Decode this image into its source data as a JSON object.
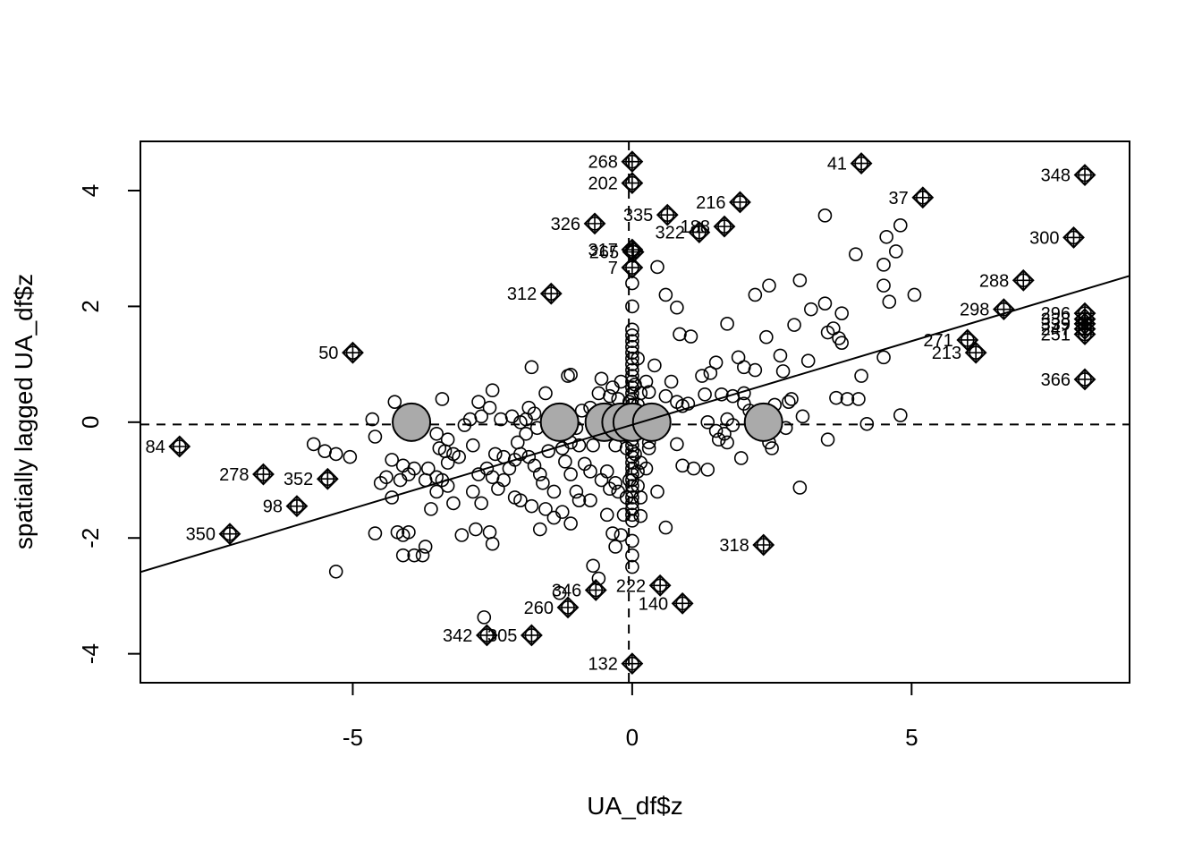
{
  "chart_data": {
    "type": "scatter",
    "title": "",
    "xlabel": "UA_df$z",
    "ylabel": "spatially lagged UA_df$z",
    "xlim": [
      -8.8,
      8.9
    ],
    "ylim": [
      -4.5,
      4.85
    ],
    "x_ticks": [
      {
        "value": -5,
        "label": "-5"
      },
      {
        "value": 0,
        "label": "0"
      },
      {
        "value": 5,
        "label": "5"
      }
    ],
    "y_ticks": [
      {
        "value": -4,
        "label": "-4"
      },
      {
        "value": -2,
        "label": "-2"
      },
      {
        "value": 0,
        "label": "0"
      },
      {
        "value": 2,
        "label": "2"
      },
      {
        "value": 4,
        "label": "4"
      }
    ],
    "reference_lines": {
      "vertical_x": -0.06,
      "horizontal_y": -0.04,
      "style": "dashed"
    },
    "regression_line": {
      "intercept": -0.045,
      "slope": 0.289
    },
    "grid": false,
    "legend": "none",
    "influential_points": [
      {
        "label": "268",
        "x": 0.0,
        "y": 4.5
      },
      {
        "label": "202",
        "x": 0.0,
        "y": 4.13
      },
      {
        "label": "41",
        "x": 4.1,
        "y": 4.47
      },
      {
        "label": "348",
        "x": 8.1,
        "y": 4.27
      },
      {
        "label": "37",
        "x": 5.2,
        "y": 3.88
      },
      {
        "label": "216",
        "x": 1.93,
        "y": 3.8
      },
      {
        "label": "335",
        "x": 0.63,
        "y": 3.58
      },
      {
        "label": "326",
        "x": -0.67,
        "y": 3.43
      },
      {
        "label": "188",
        "x": 1.65,
        "y": 3.38
      },
      {
        "label": "322",
        "x": 1.2,
        "y": 3.28
      },
      {
        "label": "300",
        "x": 7.9,
        "y": 3.19
      },
      {
        "label": "317",
        "x": 0.0,
        "y": 2.98
      },
      {
        "label": "265",
        "x": 0.02,
        "y": 2.94
      },
      {
        "label": "7",
        "x": 0.0,
        "y": 2.67
      },
      {
        "label": "288",
        "x": 7.0,
        "y": 2.45
      },
      {
        "label": "312",
        "x": -1.45,
        "y": 2.22
      },
      {
        "label": "298",
        "x": 6.65,
        "y": 1.95
      },
      {
        "label": "296",
        "x": 8.1,
        "y": 1.88
      },
      {
        "label": "338",
        "x": 8.1,
        "y": 1.78
      },
      {
        "label": "339",
        "x": 8.1,
        "y": 1.7
      },
      {
        "label": "247",
        "x": 8.1,
        "y": 1.61
      },
      {
        "label": "251",
        "x": 8.1,
        "y": 1.52
      },
      {
        "label": "271",
        "x": 6.0,
        "y": 1.42
      },
      {
        "label": "213",
        "x": 6.15,
        "y": 1.2
      },
      {
        "label": "50",
        "x": -5.0,
        "y": 1.2
      },
      {
        "label": "366",
        "x": 8.1,
        "y": 0.74
      },
      {
        "label": "84",
        "x": -8.1,
        "y": -0.42
      },
      {
        "label": "278",
        "x": -6.6,
        "y": -0.9
      },
      {
        "label": "352",
        "x": -5.45,
        "y": -0.98
      },
      {
        "label": "98",
        "x": -6.0,
        "y": -1.45
      },
      {
        "label": "350",
        "x": -7.2,
        "y": -1.93
      },
      {
        "label": "318",
        "x": 2.35,
        "y": -2.12
      },
      {
        "label": "222",
        "x": 0.5,
        "y": -2.82
      },
      {
        "label": "346",
        "x": -0.65,
        "y": -2.9
      },
      {
        "label": "140",
        "x": 0.9,
        "y": -3.13
      },
      {
        "label": "260",
        "x": -1.15,
        "y": -3.2
      },
      {
        "label": "342",
        "x": -2.6,
        "y": -3.68
      },
      {
        "label": "305",
        "x": -1.8,
        "y": -3.68
      },
      {
        "label": "132",
        "x": 0.0,
        "y": -4.17
      }
    ],
    "large_points": [
      {
        "x": -3.95,
        "y": 0.0
      },
      {
        "x": -1.3,
        "y": 0.0
      },
      {
        "x": -0.5,
        "y": 0.0
      },
      {
        "x": -0.2,
        "y": 0.0
      },
      {
        "x": 0.0,
        "y": 0.0
      },
      {
        "x": 0.35,
        "y": 0.0
      },
      {
        "x": 2.35,
        "y": 0.0
      }
    ],
    "points": [
      [
        3.45,
        3.57
      ],
      [
        4.8,
        3.4
      ],
      [
        4.55,
        3.2
      ],
      [
        4.72,
        2.95
      ],
      [
        4.0,
        2.9
      ],
      [
        4.5,
        2.72
      ],
      [
        0.45,
        2.68
      ],
      [
        3.0,
        2.45
      ],
      [
        4.5,
        2.36
      ],
      [
        2.45,
        2.36
      ],
      [
        2.2,
        2.2
      ],
      [
        0.6,
        2.2
      ],
      [
        5.05,
        2.2
      ],
      [
        4.6,
        2.08
      ],
      [
        3.45,
        2.05
      ],
      [
        0.8,
        1.98
      ],
      [
        3.2,
        1.95
      ],
      [
        3.75,
        1.88
      ],
      [
        1.7,
        1.7
      ],
      [
        2.9,
        1.68
      ],
      [
        3.6,
        1.62
      ],
      [
        3.5,
        1.55
      ],
      [
        0.85,
        1.52
      ],
      [
        1.05,
        1.48
      ],
      [
        2.4,
        1.47
      ],
      [
        3.7,
        1.45
      ],
      [
        3.75,
        1.37
      ],
      [
        2.65,
        1.15
      ],
      [
        4.5,
        1.12
      ],
      [
        1.9,
        1.12
      ],
      [
        3.15,
        1.06
      ],
      [
        1.5,
        1.03
      ],
      [
        0.4,
        0.98
      ],
      [
        2.0,
        0.95
      ],
      [
        2.2,
        0.9
      ],
      [
        2.7,
        0.88
      ],
      [
        1.4,
        0.85
      ],
      [
        4.1,
        0.8
      ],
      [
        1.25,
        0.8
      ],
      [
        0.7,
        0.7
      ],
      [
        0.25,
        0.7
      ],
      [
        1.6,
        0.48
      ],
      [
        2.0,
        0.5
      ],
      [
        0.6,
        0.45
      ],
      [
        1.3,
        0.48
      ],
      [
        1.8,
        0.45
      ],
      [
        2.85,
        0.4
      ],
      [
        3.65,
        0.42
      ],
      [
        3.85,
        0.4
      ],
      [
        4.05,
        0.4
      ],
      [
        2.8,
        0.35
      ],
      [
        2.55,
        0.3
      ],
      [
        0.8,
        0.35
      ],
      [
        1.0,
        0.32
      ],
      [
        0.9,
        0.28
      ],
      [
        2.0,
        0.32
      ],
      [
        2.1,
        0.2
      ],
      [
        3.05,
        0.1
      ],
      [
        4.8,
        0.12
      ],
      [
        1.7,
        0.05
      ],
      [
        1.35,
        0.0
      ],
      [
        1.8,
        -0.05
      ],
      [
        2.55,
        -0.05
      ],
      [
        4.2,
        -0.03
      ],
      [
        2.75,
        -0.1
      ],
      [
        1.5,
        -0.15
      ],
      [
        1.65,
        -0.2
      ],
      [
        1.55,
        -0.3
      ],
      [
        1.7,
        -0.35
      ],
      [
        2.45,
        -0.35
      ],
      [
        3.5,
        -0.3
      ],
      [
        2.5,
        -0.45
      ],
      [
        0.8,
        -0.38
      ],
      [
        0.3,
        -0.45
      ],
      [
        1.35,
        -0.82
      ],
      [
        0.9,
        -0.75
      ],
      [
        1.1,
        -0.8
      ],
      [
        1.95,
        -0.62
      ],
      [
        3.0,
        -1.13
      ],
      [
        0.45,
        -1.2
      ],
      [
        0.6,
        -1.82
      ],
      [
        0.15,
        -1.3
      ],
      [
        0.15,
        -1.62
      ],
      [
        -0.45,
        -0.85
      ],
      [
        -0.55,
        -1.0
      ],
      [
        -0.3,
        -1.05
      ],
      [
        -0.4,
        -1.15
      ],
      [
        -0.25,
        -1.2
      ],
      [
        -0.45,
        -1.6
      ],
      [
        -0.35,
        -1.92
      ],
      [
        -0.3,
        -2.15
      ],
      [
        -0.7,
        -2.48
      ],
      [
        -0.6,
        -2.7
      ],
      [
        -1.3,
        -2.95
      ],
      [
        -0.75,
        -1.35
      ],
      [
        -0.95,
        -1.35
      ],
      [
        -1.0,
        -1.2
      ],
      [
        -1.1,
        -0.9
      ],
      [
        -1.2,
        -0.68
      ],
      [
        -0.85,
        -0.72
      ],
      [
        -0.75,
        -0.85
      ],
      [
        -0.7,
        -0.4
      ],
      [
        -0.95,
        -0.4
      ],
      [
        -1.1,
        -0.35
      ],
      [
        -1.25,
        -0.45
      ],
      [
        -1.4,
        -1.2
      ],
      [
        -1.55,
        -1.5
      ],
      [
        -1.4,
        -1.65
      ],
      [
        -1.25,
        -1.55
      ],
      [
        -1.1,
        -1.75
      ],
      [
        -1.6,
        -1.05
      ],
      [
        -1.65,
        -0.9
      ],
      [
        -1.75,
        -0.75
      ],
      [
        -1.85,
        -0.6
      ],
      [
        -2.0,
        -0.55
      ],
      [
        -2.1,
        -0.65
      ],
      [
        -2.2,
        -0.8
      ],
      [
        -2.3,
        -1.0
      ],
      [
        -2.1,
        -1.3
      ],
      [
        -2.0,
        -1.35
      ],
      [
        -1.8,
        -1.45
      ],
      [
        -1.65,
        -1.85
      ],
      [
        -2.4,
        -1.15
      ],
      [
        -2.5,
        -0.95
      ],
      [
        -2.6,
        -0.8
      ],
      [
        -2.75,
        -0.9
      ],
      [
        -2.85,
        -1.2
      ],
      [
        -2.7,
        -1.4
      ],
      [
        -2.55,
        -1.9
      ],
      [
        -2.5,
        -2.1
      ],
      [
        -2.8,
        -1.85
      ],
      [
        -3.05,
        -1.95
      ],
      [
        -3.2,
        -1.4
      ],
      [
        -3.3,
        -1.1
      ],
      [
        -3.4,
        -1.0
      ],
      [
        -3.5,
        -1.2
      ],
      [
        -3.6,
        -1.5
      ],
      [
        -3.7,
        -2.15
      ],
      [
        -3.75,
        -2.3
      ],
      [
        -3.9,
        -2.3
      ],
      [
        -4.1,
        -2.3
      ],
      [
        -4.2,
        -1.9
      ],
      [
        -4.1,
        -1.95
      ],
      [
        -4.0,
        -1.9
      ],
      [
        -4.6,
        -1.92
      ],
      [
        -4.3,
        -1.3
      ],
      [
        -4.15,
        -1.0
      ],
      [
        -4.0,
        -0.9
      ],
      [
        -3.9,
        -0.8
      ],
      [
        -3.7,
        -1.0
      ],
      [
        -4.4,
        -0.95
      ],
      [
        -4.5,
        -1.05
      ],
      [
        -4.3,
        -0.65
      ],
      [
        -4.1,
        -0.75
      ],
      [
        -3.65,
        -0.8
      ],
      [
        -3.5,
        -0.95
      ],
      [
        -3.3,
        -0.7
      ],
      [
        -3.1,
        -0.6
      ],
      [
        -3.2,
        -0.55
      ],
      [
        -3.3,
        -0.3
      ],
      [
        -3.5,
        -0.2
      ],
      [
        -3.45,
        -0.45
      ],
      [
        -3.35,
        -0.5
      ],
      [
        -3.0,
        -0.05
      ],
      [
        -2.9,
        0.05
      ],
      [
        -2.75,
        0.35
      ],
      [
        -2.55,
        0.25
      ],
      [
        -2.5,
        0.55
      ],
      [
        -2.7,
        0.1
      ],
      [
        -2.85,
        -0.4
      ],
      [
        -2.35,
        0.05
      ],
      [
        -2.15,
        0.1
      ],
      [
        -2.0,
        0.0
      ],
      [
        -1.85,
        0.25
      ],
      [
        -1.75,
        0.15
      ],
      [
        -1.7,
        -0.1
      ],
      [
        -1.9,
        -0.2
      ],
      [
        -2.05,
        -0.35
      ],
      [
        -2.3,
        -0.6
      ],
      [
        -2.45,
        -0.55
      ],
      [
        -1.8,
        0.95
      ],
      [
        -1.55,
        0.5
      ],
      [
        -1.15,
        0.8
      ],
      [
        -1.1,
        0.82
      ],
      [
        -0.55,
        0.75
      ],
      [
        -0.35,
        0.6
      ],
      [
        -0.2,
        0.7
      ],
      [
        -0.4,
        0.45
      ],
      [
        -0.25,
        0.4
      ],
      [
        -0.6,
        0.5
      ],
      [
        -0.75,
        0.25
      ],
      [
        -0.9,
        0.2
      ],
      [
        -1.0,
        -0.1
      ],
      [
        -1.3,
        -0.2
      ],
      [
        -1.5,
        -0.5
      ],
      [
        -1.9,
        0.05
      ],
      [
        -3.4,
        0.4
      ],
      [
        -4.25,
        0.35
      ],
      [
        -4.65,
        0.05
      ],
      [
        -4.6,
        -0.25
      ],
      [
        -5.05,
        -0.6
      ],
      [
        -5.3,
        -0.55
      ],
      [
        -5.5,
        -0.5
      ],
      [
        -5.7,
        -0.38
      ],
      [
        -5.3,
        -2.58
      ],
      [
        -2.65,
        -3.37
      ],
      [
        -0.2,
        -1.95
      ],
      [
        -0.15,
        -1.6
      ],
      [
        -0.1,
        -1.3
      ],
      [
        -0.05,
        -1.0
      ],
      [
        -0.55,
        -0.2
      ],
      [
        -0.3,
        -0.4
      ],
      [
        0.1,
        0.3
      ],
      [
        0.15,
        0.5
      ],
      [
        0.1,
        1.1
      ],
      [
        0.15,
        -0.7
      ],
      [
        0.1,
        -0.85
      ],
      [
        0.25,
        -0.8
      ],
      [
        0.3,
        -0.35
      ],
      [
        0.2,
        0.15
      ],
      [
        0.0,
        2.4
      ],
      [
        0.0,
        2.0
      ],
      [
        0.0,
        1.6
      ],
      [
        0.0,
        1.5
      ],
      [
        0.0,
        1.4
      ],
      [
        0.0,
        1.3
      ],
      [
        0.0,
        1.2
      ],
      [
        0.0,
        1.1
      ],
      [
        0.0,
        1.0
      ],
      [
        0.0,
        0.9
      ],
      [
        0.0,
        0.8
      ],
      [
        0.0,
        0.7
      ],
      [
        0.0,
        0.6
      ],
      [
        0.0,
        0.5
      ],
      [
        0.0,
        0.4
      ],
      [
        0.0,
        0.3
      ],
      [
        0.0,
        0.2
      ],
      [
        0.0,
        0.1
      ],
      [
        0.0,
        -0.1
      ],
      [
        0.0,
        -0.2
      ],
      [
        0.0,
        -0.3
      ],
      [
        0.0,
        -0.4
      ],
      [
        0.0,
        -0.5
      ],
      [
        0.0,
        -0.6
      ],
      [
        0.0,
        -0.7
      ],
      [
        0.0,
        -0.8
      ],
      [
        0.0,
        -0.9
      ],
      [
        0.0,
        -1.0
      ],
      [
        0.0,
        -1.1
      ],
      [
        0.0,
        -1.2
      ],
      [
        0.0,
        -1.3
      ],
      [
        0.0,
        -1.4
      ],
      [
        0.0,
        -1.5
      ],
      [
        0.0,
        -1.6
      ],
      [
        0.0,
        -1.7
      ],
      [
        0.0,
        -2.05
      ],
      [
        0.0,
        -2.3
      ],
      [
        0.0,
        -2.5
      ],
      [
        -0.05,
        0.35
      ],
      [
        0.05,
        0.65
      ],
      [
        0.3,
        0.52
      ],
      [
        0.1,
        -1.1
      ],
      [
        0.05,
        -0.55
      ],
      [
        -0.1,
        -0.45
      ],
      [
        -0.05,
        0.15
      ]
    ]
  }
}
